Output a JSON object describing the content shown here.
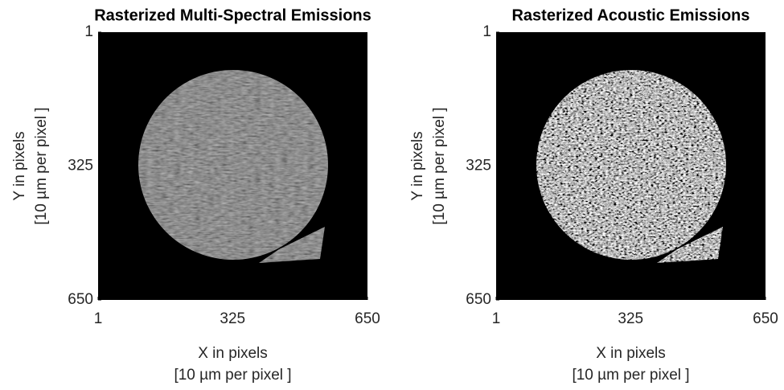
{
  "chart_data": [
    {
      "type": "image",
      "title": "Rasterized Multi-Spectral Emissions",
      "xlabel": [
        "X in pixels",
        "[10 µm per pixel ]"
      ],
      "ylabel": [
        "Y in pixels",
        "[10 µm per pixel ]"
      ],
      "xlim": [
        1,
        650
      ],
      "ylim": [
        1,
        650
      ],
      "xticks": [
        1,
        325,
        650
      ],
      "yticks": [
        1,
        325,
        650
      ],
      "y_reversed": true
    },
    {
      "type": "image",
      "title": "Rasterized Acoustic Emissions",
      "xlabel": [
        "X in pixels",
        "[10 µm per pixel ]"
      ],
      "ylabel": [
        "Y in pixels",
        "[10 µm per pixel ]"
      ],
      "xlim": [
        1,
        650
      ],
      "ylim": [
        1,
        650
      ],
      "xticks": [
        1,
        325,
        650
      ],
      "yticks": [
        1,
        325,
        650
      ],
      "y_reversed": true
    }
  ]
}
